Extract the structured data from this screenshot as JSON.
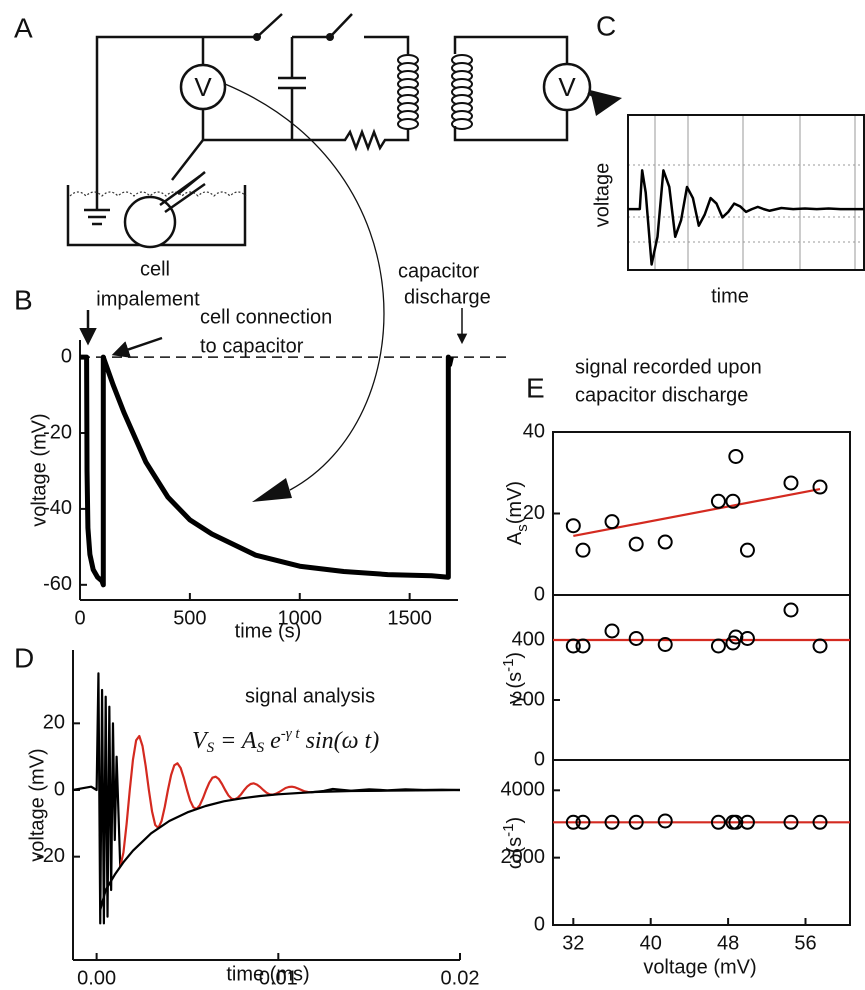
{
  "panel_labels": [
    "A",
    "B",
    "C",
    "D",
    "E"
  ],
  "diagram": {
    "meters": [
      "V",
      "V"
    ]
  },
  "chart_data": [
    {
      "type": "line",
      "xlabel": "time",
      "ylabel": "voltage",
      "xlim": [
        0,
        10
      ],
      "ylim": [
        -1.1,
        1.7
      ],
      "color": "#000000",
      "x": [
        0,
        0.25,
        0.5,
        0.6,
        0.75,
        1.0,
        1.25,
        1.5,
        1.75,
        2.0,
        2.25,
        2.5,
        2.75,
        3.0,
        3.25,
        3.5,
        3.75,
        4.0,
        4.25,
        4.5,
        4.75,
        5,
        5.25,
        5.5,
        5.75,
        6,
        6.5,
        7,
        7.5,
        8,
        8.5,
        9,
        9.5,
        10
      ],
      "values": [
        0,
        0,
        0,
        0.7,
        0.3,
        -1,
        -0.5,
        0.7,
        0.4,
        -0.5,
        -0.2,
        0.4,
        0.2,
        -0.3,
        -0.1,
        0.2,
        0.1,
        -0.15,
        -0.05,
        0.1,
        0.05,
        -0.05,
        0,
        0.04,
        0,
        -0.03,
        0.02,
        0,
        0.01,
        0,
        0.01,
        0,
        0,
        0
      ]
    },
    {
      "type": "line",
      "xlabel": "time (s)",
      "ylabel": "voltage (mV)",
      "xlim": [
        0,
        1720
      ],
      "ylim": [
        -64,
        4.5
      ],
      "xticks": [
        0,
        500,
        1000,
        1500
      ],
      "yticks": [
        0,
        -20,
        -40,
        -60
      ],
      "reference_line": 0,
      "color": "#000000",
      "annotations": [
        "cell",
        "impalement",
        "cell connection",
        "to capacitor",
        "capacitor",
        "discharge"
      ],
      "x": [
        0,
        30,
        32,
        36,
        45,
        60,
        80,
        100,
        106,
        106,
        112,
        150,
        200,
        300,
        400,
        500,
        600,
        800,
        1000,
        1200,
        1400,
        1600,
        1676,
        1676,
        1682,
        1690
      ],
      "values": [
        0,
        0,
        -30,
        -45,
        -52,
        -56,
        -58,
        -59,
        -60,
        0,
        -1,
        -7.2,
        -14.6,
        -27.7,
        -36.9,
        -42.9,
        -46.6,
        -52.2,
        -55.1,
        -56.5,
        -57.3,
        -57.6,
        -58,
        0,
        -2,
        0
      ]
    },
    {
      "type": "line",
      "xlabel": "time (ms)",
      "ylabel": "voltage (mV)",
      "xlim": [
        -0.0013,
        0.02
      ],
      "ylim": [
        -51,
        42
      ],
      "xticks": [
        {
          "value": 0,
          "label": "0.00"
        },
        {
          "value": 0.01,
          "label": "0.01"
        },
        {
          "value": 0.02,
          "label": "0.02"
        }
      ],
      "yticks": [
        20,
        0,
        -20
      ],
      "annotations": [
        "signal analysis"
      ],
      "equation": [
        "V",
        "S",
        " = A",
        "S",
        " e",
        "-γ t",
        " sin(ω t)"
      ],
      "series": [
        {
          "color": "#000000",
          "x": [
            -0.0013,
            -0.0008,
            -0.0003,
            0,
            0.0001,
            0.0002,
            0.0003,
            0.0004,
            0.0005,
            0.0006,
            0.0007,
            0.0008,
            0.0009,
            0.001,
            0.0011,
            0.0013,
            0.005,
            0.0118,
            0.0125,
            0.013,
            0.014,
            0.015,
            0.016,
            0.017,
            0.018,
            0.019,
            0.02
          ],
          "values": [
            0,
            0.5,
            1,
            0,
            35,
            -40,
            30,
            -40,
            28,
            -38,
            25,
            -30,
            20,
            -15,
            10,
            -23,
            null,
            -0.7,
            -0.3,
            0.3,
            -0.2,
            0.2,
            -0.1,
            0.2,
            0,
            0.1,
            0
          ]
        },
        {
          "color": "#d42a20",
          "x": [
            0.0013,
            0.001475,
            0.00165,
            0.001825,
            0.002,
            0.002175,
            0.00235,
            0.002525,
            0.0027,
            0.002875,
            0.00305,
            0.003225,
            0.0034,
            0.003575,
            0.00375,
            0.003925,
            0.0041,
            0.004275,
            0.00445,
            0.004625,
            0.0048,
            0.004975,
            0.00515,
            0.005325,
            0.0055,
            0.005675,
            0.00585,
            0.006025,
            0.0062,
            0.006375,
            0.00655,
            0.006725,
            0.0069,
            0.007075,
            0.00725,
            0.007425,
            0.0076,
            0.007775,
            0.00795,
            0.008125,
            0.0083,
            0.008475,
            0.00865,
            0.008825,
            0.009,
            0.009175,
            0.00935,
            0.009525,
            0.0097,
            0.009875,
            0.01005,
            0.010225,
            0.0104,
            0.010575,
            0.01075,
            0.010925,
            0.0111,
            0.011275,
            0.01145,
            0.011625,
            0.0118
          ],
          "values": [
            -23,
            -18.8,
            -10.2,
            0,
            9.1,
            14.9,
            16.2,
            13.2,
            7.2,
            0,
            -6.4,
            -10.5,
            -11.4,
            -9.3,
            -5.1,
            0,
            4.5,
            7.4,
            8,
            6.6,
            3.6,
            0,
            -3.2,
            -5.2,
            -5.7,
            -4.6,
            -2.5,
            0,
            2.2,
            3.7,
            4,
            3.3,
            1.8,
            0,
            -1.6,
            -2.6,
            -2.8,
            -2.3,
            -1.3,
            0,
            1.1,
            1.8,
            2,
            1.6,
            0.9,
            0,
            -0.8,
            -1.3,
            -1.4,
            -1.1,
            -0.6,
            0,
            0.6,
            0.9,
            1,
            0.8,
            0.4,
            0,
            -0.4,
            -0.6,
            -0.7
          ]
        },
        {
          "color": "#000000",
          "x": [
            0.0002,
            0.0005,
            0.001,
            0.0015,
            0.002,
            0.003,
            0.004,
            0.005,
            0.006,
            0.007,
            0.008,
            0.009,
            0.01,
            0.012,
            0.014,
            0.016,
            0.02
          ],
          "values": [
            -36,
            -30,
            -25.4,
            -21.5,
            -18.2,
            -13,
            -9.3,
            -6.7,
            -4.8,
            -3.4,
            -2.5,
            -1.8,
            -1.3,
            -0.6,
            -0.3,
            -0.2,
            0
          ]
        }
      ]
    },
    {
      "type": "scatter",
      "ylabel": [
        "A",
        "s",
        "(mV)"
      ],
      "xlim": [
        29.9,
        60.6
      ],
      "ylim": [
        0,
        40
      ],
      "yticks": [
        0,
        20,
        40
      ],
      "annotations": [
        "signal recorded upon",
        "capacitor discharge"
      ],
      "color": "#000000",
      "x": [
        32,
        33,
        36,
        38.5,
        41.5,
        47,
        48.5,
        48.8,
        50,
        54.5,
        57.5
      ],
      "values": [
        17,
        11,
        18,
        12.5,
        13,
        23,
        23,
        34,
        11,
        27.5,
        26.5
      ],
      "fit": {
        "color": "#d42a20",
        "x": [
          32,
          57.5
        ],
        "values": [
          14.5,
          26
        ]
      }
    },
    {
      "type": "scatter",
      "ylabel": [
        "γ (s",
        "-1",
        ")"
      ],
      "xlim": [
        29.9,
        60.6
      ],
      "ylim": [
        0,
        550
      ],
      "yticks": [
        0,
        200,
        400
      ],
      "color": "#000000",
      "x": [
        32,
        33,
        36,
        38.5,
        41.5,
        47,
        48.5,
        48.8,
        50,
        54.5,
        57.5
      ],
      "values": [
        380,
        380,
        430,
        405,
        385,
        380,
        390,
        410,
        405,
        500,
        380
      ],
      "fit": {
        "color": "#d42a20",
        "x": [
          29.9,
          60.6
        ],
        "values": [
          400,
          400
        ]
      }
    },
    {
      "type": "scatter",
      "xlabel": "voltage (mV)",
      "ylabel": [
        "ω(s",
        "-1",
        ")"
      ],
      "xlim": [
        29.9,
        60.6
      ],
      "ylim": [
        0,
        4900
      ],
      "xticks": [
        32,
        40,
        48,
        56
      ],
      "yticks": [
        0,
        2000,
        4000
      ],
      "color": "#000000",
      "x": [
        32,
        33,
        36,
        38.5,
        41.5,
        47,
        48.5,
        48.8,
        50,
        54.5,
        57.5
      ],
      "values": [
        3050,
        3050,
        3050,
        3050,
        3090,
        3050,
        3050,
        3050,
        3050,
        3050,
        3050
      ],
      "fit": {
        "color": "#d42a20",
        "x": [
          29.9,
          60.6
        ],
        "values": [
          3050,
          3050
        ]
      }
    }
  ]
}
